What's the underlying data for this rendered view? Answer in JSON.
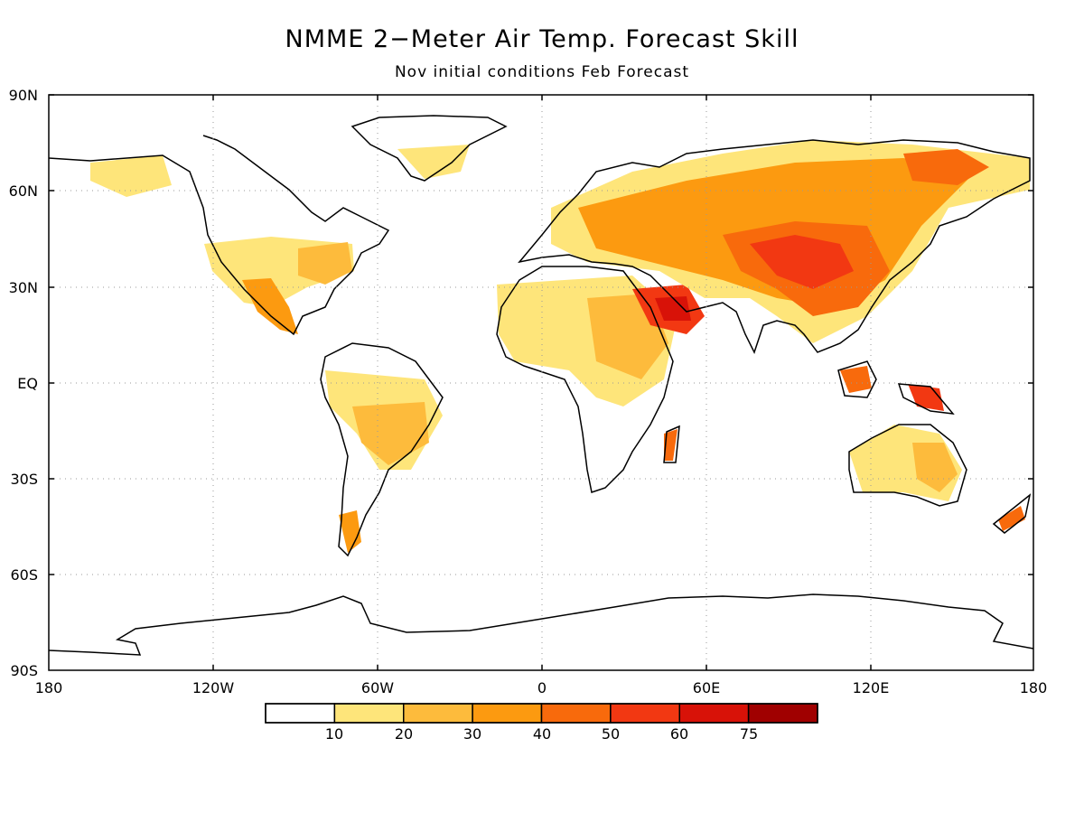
{
  "title": "NMME 2−Meter Air Temp. Forecast Skill",
  "subtitle": "Nov initial conditions  Feb Forecast",
  "axes": {
    "lat_labels": [
      "90N",
      "60N",
      "30N",
      "EQ",
      "30S",
      "60S",
      "90S"
    ],
    "lon_labels": [
      "180",
      "120W",
      "60W",
      "0",
      "60E",
      "120E",
      "180"
    ],
    "grid": "dotted"
  },
  "colorbar": {
    "labels": [
      "10",
      "20",
      "30",
      "40",
      "50",
      "60",
      "75"
    ],
    "colors": [
      "#ffffff",
      "#fee57a",
      "#fdbb3c",
      "#fc9a10",
      "#f86a0c",
      "#f23812",
      "#d81208",
      "#a00000"
    ]
  },
  "colors": {
    "land_outline": "#000000",
    "ocean": "#ffffff"
  }
}
